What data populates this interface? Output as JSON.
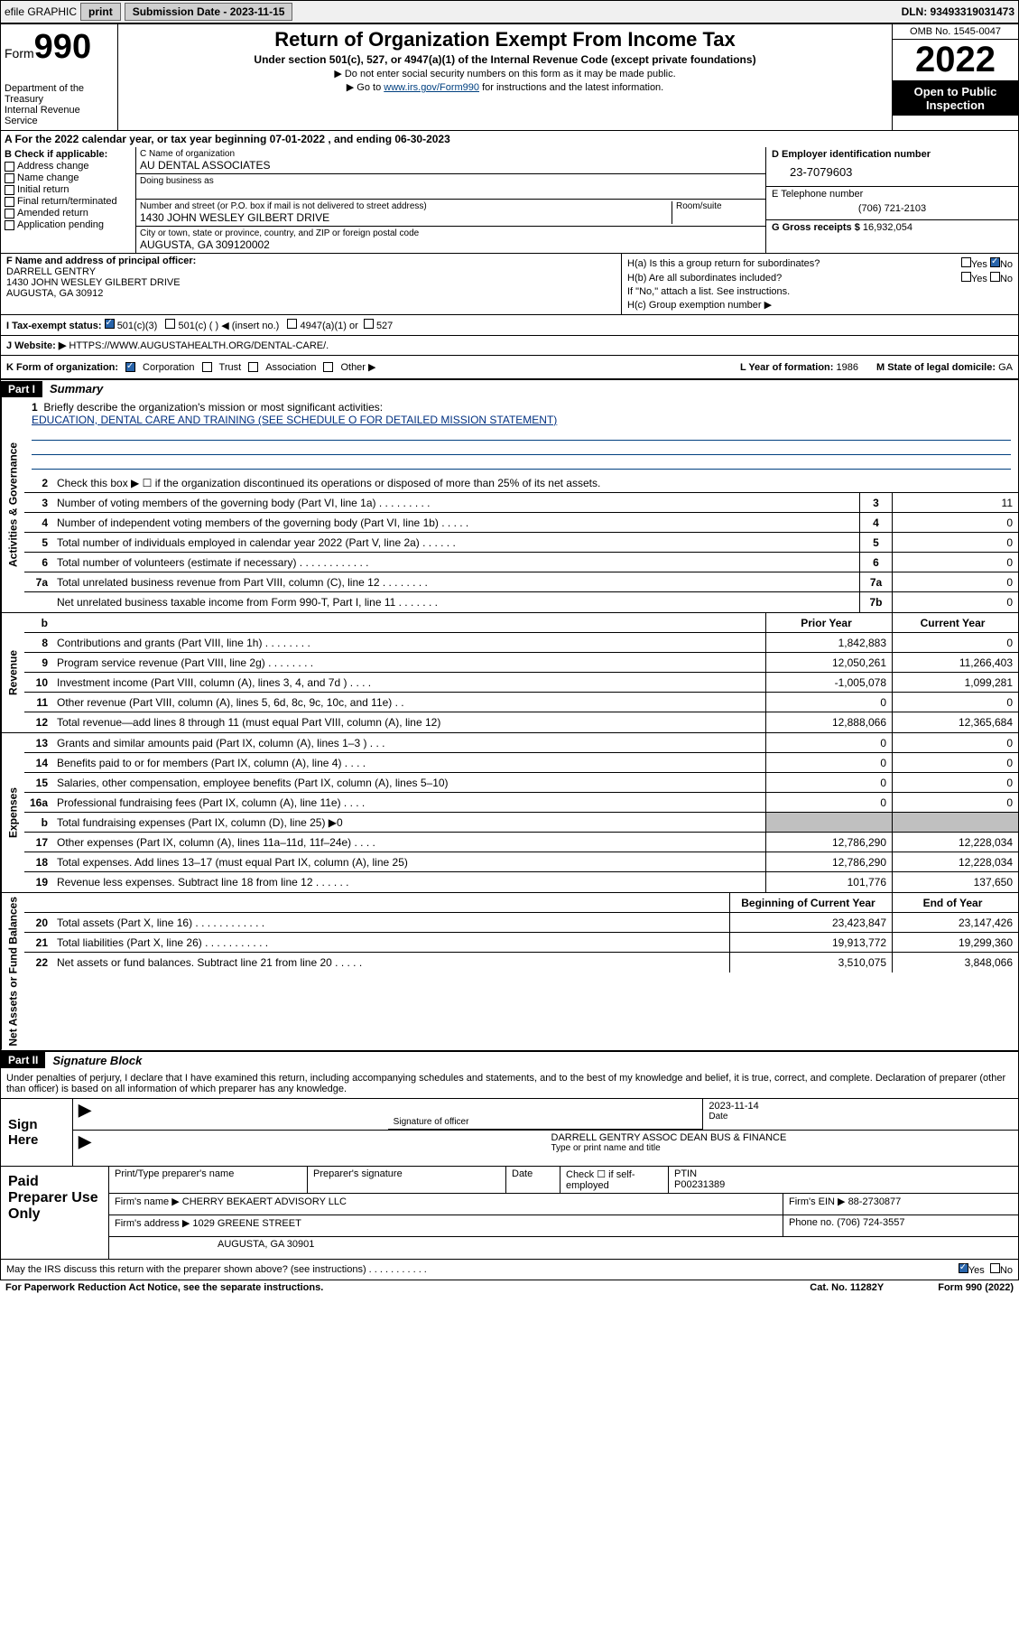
{
  "top_bar": {
    "efile_label": "efile GRAPHIC",
    "print_btn": "print",
    "submission_date_label": "Submission Date - 2023-11-15",
    "dln": "DLN: 93493319031473"
  },
  "header": {
    "form_prefix": "Form",
    "form_number": "990",
    "dept": "Department of the Treasury",
    "irs_line": "Internal Revenue Service",
    "title": "Return of Organization Exempt From Income Tax",
    "subtitle": "Under section 501(c), 527, or 4947(a)(1) of the Internal Revenue Code (except private foundations)",
    "instr1": "▶ Do not enter social security numbers on this form as it may be made public.",
    "instr2_prefix": "▶ Go to ",
    "instr2_link": "www.irs.gov/Form990",
    "instr2_suffix": " for instructions and the latest information.",
    "omb": "OMB No. 1545-0047",
    "year": "2022",
    "open_public": "Open to Public Inspection"
  },
  "period": "A For the 2022 calendar year, or tax year beginning 07-01-2022   , and ending 06-30-2023",
  "section_b": {
    "title": "B Check if applicable:",
    "opts": [
      "Address change",
      "Name change",
      "Initial return",
      "Final return/terminated",
      "Amended return",
      "Application pending"
    ]
  },
  "section_c": {
    "name_label": "C Name of organization",
    "name": "AU DENTAL ASSOCIATES",
    "dba_label": "Doing business as",
    "addr_label": "Number and street (or P.O. box if mail is not delivered to street address)",
    "room_label": "Room/suite",
    "addr": "1430 JOHN WESLEY GILBERT DRIVE",
    "city_label": "City or town, state or province, country, and ZIP or foreign postal code",
    "city": "AUGUSTA, GA  309120002"
  },
  "section_d": {
    "label": "D Employer identification number",
    "ein": "23-7079603"
  },
  "section_e": {
    "label": "E Telephone number",
    "phone": "(706) 721-2103"
  },
  "section_g": {
    "label": "G Gross receipts $",
    "amount": "16,932,054"
  },
  "section_f": {
    "label": "F Name and address of principal officer:",
    "name": "DARRELL GENTRY",
    "addr1": "1430 JOHN WESLEY GILBERT DRIVE",
    "addr2": "AUGUSTA, GA  30912"
  },
  "section_h": {
    "ha": "H(a)  Is this a group return for subordinates?",
    "hb": "H(b)  Are all subordinates included?",
    "hb_note": "If \"No,\" attach a list. See instructions.",
    "hc": "H(c)  Group exemption number ▶",
    "yes": "Yes",
    "no": "No"
  },
  "section_i": {
    "label": "I  Tax-exempt status:",
    "opt1": "501(c)(3)",
    "opt2": "501(c) (  ) ◀ (insert no.)",
    "opt3": "4947(a)(1) or",
    "opt4": "527"
  },
  "section_j": {
    "label": "J  Website: ▶",
    "url": "HTTPS://WWW.AUGUSTAHEALTH.ORG/DENTAL-CARE/."
  },
  "section_k": {
    "label": "K Form of organization:",
    "opts": [
      "Corporation",
      "Trust",
      "Association",
      "Other ▶"
    ]
  },
  "section_l": {
    "label": "L Year of formation:",
    "value": "1986"
  },
  "section_m": {
    "label": "M State of legal domicile:",
    "value": "GA"
  },
  "part1": {
    "hdr": "Part I",
    "title": "Summary"
  },
  "mission": {
    "num": "1",
    "label": "Briefly describe the organization's mission or most significant activities:",
    "text": "EDUCATION, DENTAL CARE AND TRAINING (SEE SCHEDULE O FOR DETAILED MISSION STATEMENT)"
  },
  "line2": {
    "num": "2",
    "text": "Check this box ▶ ☐ if the organization discontinued its operations or disposed of more than 25% of its net assets."
  },
  "governance": {
    "side": "Activities & Governance",
    "rows": [
      {
        "num": "3",
        "desc": "Number of voting members of the governing body (Part VI, line 1a)  .    .    .    .    .    .    .    .    .",
        "box": "3",
        "amt": "11"
      },
      {
        "num": "4",
        "desc": "Number of independent voting members of the governing body (Part VI, line 1b)  .    .    .    .    .",
        "box": "4",
        "amt": "0"
      },
      {
        "num": "5",
        "desc": "Total number of individuals employed in calendar year 2022 (Part V, line 2a)  .    .    .    .    .    .",
        "box": "5",
        "amt": "0"
      },
      {
        "num": "6",
        "desc": "Total number of volunteers (estimate if necessary)  .    .    .    .    .    .    .    .    .    .    .    .",
        "box": "6",
        "amt": "0"
      },
      {
        "num": "7a",
        "desc": "Total unrelated business revenue from Part VIII, column (C), line 12  .    .    .    .    .    .    .    .",
        "box": "7a",
        "amt": "0"
      },
      {
        "num": "",
        "desc": "Net unrelated business taxable income from Form 990-T, Part I, line 11  .    .    .    .    .    .    .",
        "box": "7b",
        "amt": "0"
      }
    ]
  },
  "revenue": {
    "side": "Revenue",
    "hdr_prior": "Prior Year",
    "hdr_current": "Current Year",
    "rows": [
      {
        "num": "8",
        "desc": "Contributions and grants (Part VIII, line 1h)  .    .    .    .    .    .    .    .",
        "prior": "1,842,883",
        "curr": "0"
      },
      {
        "num": "9",
        "desc": "Program service revenue (Part VIII, line 2g)  .    .    .    .    .    .    .    .",
        "prior": "12,050,261",
        "curr": "11,266,403"
      },
      {
        "num": "10",
        "desc": "Investment income (Part VIII, column (A), lines 3, 4, and 7d )  .    .    .    .",
        "prior": "-1,005,078",
        "curr": "1,099,281"
      },
      {
        "num": "11",
        "desc": "Other revenue (Part VIII, column (A), lines 5, 6d, 8c, 9c, 10c, and 11e)  .    .",
        "prior": "0",
        "curr": "0"
      },
      {
        "num": "12",
        "desc": "Total revenue—add lines 8 through 11 (must equal Part VIII, column (A), line 12)",
        "prior": "12,888,066",
        "curr": "12,365,684"
      }
    ]
  },
  "expenses": {
    "side": "Expenses",
    "rows": [
      {
        "num": "13",
        "desc": "Grants and similar amounts paid (Part IX, column (A), lines 1–3 )  .    .    .",
        "prior": "0",
        "curr": "0"
      },
      {
        "num": "14",
        "desc": "Benefits paid to or for members (Part IX, column (A), line 4)  .    .    .    .",
        "prior": "0",
        "curr": "0"
      },
      {
        "num": "15",
        "desc": "Salaries, other compensation, employee benefits (Part IX, column (A), lines 5–10)",
        "prior": "0",
        "curr": "0"
      },
      {
        "num": "16a",
        "desc": "Professional fundraising fees (Part IX, column (A), line 11e)  .    .    .    .",
        "prior": "0",
        "curr": "0"
      },
      {
        "num": "b",
        "desc": "Total fundraising expenses (Part IX, column (D), line 25) ▶0",
        "prior": "",
        "curr": "",
        "grey": true
      },
      {
        "num": "17",
        "desc": "Other expenses (Part IX, column (A), lines 11a–11d, 11f–24e)  .    .    .    .",
        "prior": "12,786,290",
        "curr": "12,228,034"
      },
      {
        "num": "18",
        "desc": "Total expenses. Add lines 13–17 (must equal Part IX, column (A), line 25)",
        "prior": "12,786,290",
        "curr": "12,228,034"
      },
      {
        "num": "19",
        "desc": "Revenue less expenses. Subtract line 18 from line 12  .    .    .    .    .    .",
        "prior": "101,776",
        "curr": "137,650"
      }
    ]
  },
  "netassets": {
    "side": "Net Assets or Fund Balances",
    "hdr_prior": "Beginning of Current Year",
    "hdr_current": "End of Year",
    "rows": [
      {
        "num": "20",
        "desc": "Total assets (Part X, line 16)  .    .    .    .    .    .    .    .    .    .    .    .",
        "prior": "23,423,847",
        "curr": "23,147,426"
      },
      {
        "num": "21",
        "desc": "Total liabilities (Part X, line 26)  .    .    .    .    .    .    .    .    .    .    .",
        "prior": "19,913,772",
        "curr": "19,299,360"
      },
      {
        "num": "22",
        "desc": "Net assets or fund balances. Subtract line 21 from line 20  .    .    .    .    .",
        "prior": "3,510,075",
        "curr": "3,848,066"
      }
    ]
  },
  "part2": {
    "hdr": "Part II",
    "title": "Signature Block"
  },
  "sig_text": "Under penalties of perjury, I declare that I have examined this return, including accompanying schedules and statements, and to the best of my knowledge and belief, it is true, correct, and complete. Declaration of preparer (other than officer) is based on all information of which preparer has any knowledge.",
  "sign": {
    "left": "Sign Here",
    "sig_of_officer": "Signature of officer",
    "date_lbl": "Date",
    "date_val": "2023-11-14",
    "name_title": "DARRELL GENTRY  ASSOC DEAN BUS & FINANCE",
    "name_lbl": "Type or print name and title"
  },
  "preparer": {
    "left": "Paid Preparer Use Only",
    "h1": "Print/Type preparer's name",
    "h2": "Preparer's signature",
    "h3": "Date",
    "h4_chk": "Check ☐ if self-employed",
    "ptin_lbl": "PTIN",
    "ptin": "P00231389",
    "firm_name_lbl": "Firm's name    ▶",
    "firm_name": "CHERRY BEKAERT ADVISORY LLC",
    "firm_ein_lbl": "Firm's EIN ▶",
    "firm_ein": "88-2730877",
    "firm_addr_lbl": "Firm's address ▶",
    "firm_addr1": "1029 GREENE STREET",
    "firm_addr2": "AUGUSTA, GA  30901",
    "phone_lbl": "Phone no.",
    "phone": "(706) 724-3557"
  },
  "footer": {
    "discuss": "May the IRS discuss this return with the preparer shown above? (see instructions)  .    .    .    .    .    .    .    .    .    .    .",
    "yes": "Yes",
    "no": "No",
    "paperwork": "For Paperwork Reduction Act Notice, see the separate instructions.",
    "cat": "Cat. No. 11282Y",
    "form": "Form 990 (2022)"
  }
}
